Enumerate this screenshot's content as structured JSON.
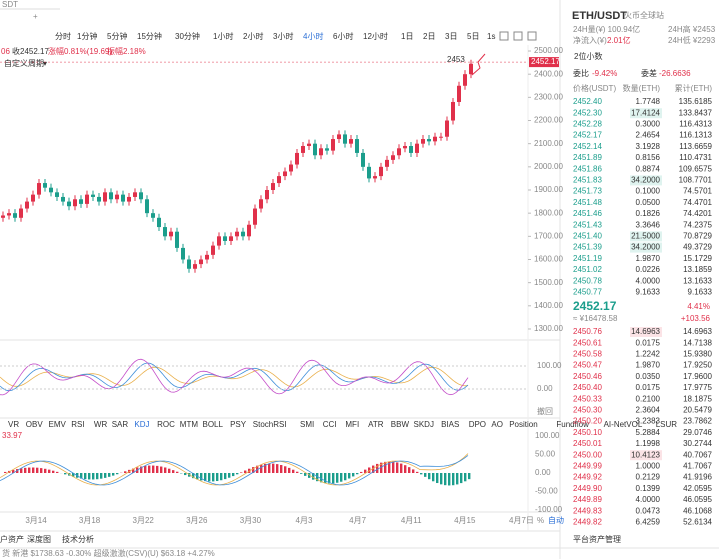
{
  "tab": "SDT",
  "periods": [
    "分时",
    "1分钟",
    "5分钟",
    "15分钟",
    "30分钟",
    "1小时",
    "2小时",
    "3小时",
    "4小时",
    "6小时",
    "12小时",
    "1日",
    "2日",
    "3日",
    "5日"
  ],
  "refresh": "1s",
  "info": {
    "prefix": "06",
    "close": "收2452.17",
    "change": "涨幅0.81%(19.69)",
    "amplitude": "振幅2.18%"
  },
  "custom_period": "自定义周期",
  "chart": {
    "type": "candlestick",
    "first_open": 1780,
    "closes": [
      1790,
      1800,
      1780,
      1820,
      1850,
      1880,
      1930,
      1910,
      1890,
      1870,
      1850,
      1830,
      1860,
      1840,
      1880,
      1870,
      1850,
      1890,
      1860,
      1880,
      1850,
      1870,
      1890,
      1860,
      1800,
      1780,
      1740,
      1700,
      1720,
      1650,
      1600,
      1560,
      1580,
      1600,
      1620,
      1660,
      1700,
      1680,
      1700,
      1720,
      1700,
      1750,
      1820,
      1860,
      1900,
      1930,
      1960,
      1980,
      2010,
      2060,
      2090,
      2100,
      2050,
      2080,
      2070,
      2120,
      2140,
      2100,
      2120,
      2060,
      2000,
      1950,
      1960,
      2000,
      2030,
      2050,
      2080,
      2090,
      2060,
      2100,
      2120,
      2110,
      2130,
      2130,
      2200,
      2280,
      2350,
      2400,
      2445
    ],
    "ylim": [
      1274,
      2526
    ],
    "yticks": [
      {
        "value": 2500,
        "label": "2500.00"
      },
      {
        "value": 2400,
        "label": "2400.00"
      },
      {
        "value": 2300,
        "label": "2300.00"
      },
      {
        "value": 2200,
        "label": "2200.00"
      },
      {
        "value": 2100,
        "label": "2100.00"
      },
      {
        "value": 2000,
        "label": "2000.00"
      },
      {
        "value": 1900,
        "label": "1900.00"
      },
      {
        "value": 1800,
        "label": "1800.00"
      },
      {
        "value": 1700,
        "label": "1700.00"
      },
      {
        "value": 1600,
        "label": "1600.00"
      },
      {
        "value": 1500,
        "label": "1500.00"
      },
      {
        "value": 1400,
        "label": "1400.00"
      },
      {
        "value": 1300,
        "label": "1300.00"
      }
    ],
    "last_price": {
      "value": 2452.17,
      "label": "2452.17"
    },
    "high": {
      "value": 2453,
      "label": "2453"
    }
  },
  "indicators": [
    "VR",
    "OBV",
    "EMV",
    "RSI",
    "WR",
    "SAR",
    "KDJ",
    "ROC",
    "MTM",
    "BOLL",
    "PSY",
    "StochRSI",
    "SMI",
    "CCI",
    "MFI",
    "ATR",
    "BBW",
    "SKDJ",
    "BIAS",
    "DPO",
    "AO",
    "Position",
    "Fundflow",
    "AI-NetVOL",
    "LSUR"
  ],
  "kdj_axis": [
    "100.00",
    "0.00",
    "撤回"
  ],
  "macd_value": "33.97",
  "macd_axis": [
    "100.00",
    "50.00",
    "0.00",
    "-50.00",
    "-100.00"
  ],
  "dates": [
    "3月14",
    "3月18",
    "3月22",
    "3月26",
    "3月30",
    "4月3",
    "4月7",
    "4月11",
    "4月15"
  ],
  "axis_controls": [
    "4月7日",
    "%",
    "自动"
  ],
  "bottom_tabs": [
    "户资产",
    "深度图",
    "技术分析"
  ],
  "ticker": "货 新港 $1738.63 -0.30%   超级激激(CSV)(U) $63.18 +4.27%",
  "side": {
    "pair": "ETH/USDT",
    "exchange": "火币全球站",
    "vol": "24H量(¥) 100.94亿",
    "high": "24H高 ¥2453",
    "inflow_label": "净流入(¥)",
    "inflow": "2.01亿",
    "low": "24H低 ¥2293",
    "decimals": "2位小数",
    "ratio_label": "委比",
    "ratio": "-9.42%",
    "diff_label": "委差",
    "diff": "-26.6636",
    "headers": [
      "价格(USDT)",
      "数量(ETH)",
      "累计(ETH)"
    ],
    "upper": [
      [
        "2452.40",
        "1.7748",
        "135.6185"
      ],
      [
        "2452.30",
        "17.4124",
        "133.8437"
      ],
      [
        "2452.28",
        "0.3000",
        "116.4313"
      ],
      [
        "2452.17",
        "2.4654",
        "116.1313"
      ],
      [
        "2452.14",
        "3.1928",
        "113.6659"
      ],
      [
        "2451.89",
        "0.8156",
        "110.4731"
      ],
      [
        "2451.86",
        "0.8874",
        "109.6575"
      ],
      [
        "2451.83",
        "34.2000",
        "108.7701"
      ],
      [
        "2451.73",
        "0.1000",
        "74.5701"
      ],
      [
        "2451.48",
        "0.0500",
        "74.4701"
      ],
      [
        "2451.46",
        "0.1826",
        "74.4201"
      ],
      [
        "2451.43",
        "3.3646",
        "74.2375"
      ],
      [
        "2451.40",
        "21.5000",
        "70.8729"
      ],
      [
        "2451.39",
        "34.2000",
        "49.3729"
      ],
      [
        "2451.19",
        "1.9870",
        "15.1729"
      ],
      [
        "2451.02",
        "0.0226",
        "13.1859"
      ],
      [
        "2450.78",
        "4.0000",
        "13.1633"
      ],
      [
        "2450.77",
        "9.1633",
        "9.1633"
      ]
    ],
    "price": "2452.17",
    "pct": "4.41%",
    "cny": "≈ ¥16478.58",
    "delta": "+103.56",
    "lower": [
      [
        "2450.76",
        "14.6963",
        "14.6963"
      ],
      [
        "2450.61",
        "0.0175",
        "14.7138"
      ],
      [
        "2450.58",
        "1.2242",
        "15.9380"
      ],
      [
        "2450.47",
        "1.9870",
        "17.9250"
      ],
      [
        "2450.46",
        "0.0350",
        "17.9600"
      ],
      [
        "2450.40",
        "0.0175",
        "17.9775"
      ],
      [
        "2450.33",
        "0.2100",
        "18.1875"
      ],
      [
        "2450.30",
        "2.3604",
        "20.5479"
      ],
      [
        "2450.20",
        "3.2383",
        "23.7862"
      ],
      [
        "2450.10",
        "5.2884",
        "29.0746"
      ],
      [
        "2450.01",
        "1.1998",
        "30.2744"
      ],
      [
        "2450.00",
        "10.4123",
        "40.7067"
      ],
      [
        "2449.99",
        "1.0000",
        "41.7067"
      ],
      [
        "2449.92",
        "0.2129",
        "41.9196"
      ],
      [
        "2449.90",
        "0.1399",
        "42.0595"
      ],
      [
        "2449.89",
        "4.0000",
        "46.0595"
      ],
      [
        "2449.83",
        "0.0473",
        "46.1068"
      ],
      [
        "2449.82",
        "6.4259",
        "52.6134"
      ]
    ],
    "asset_mgmt": "平台资产管理"
  }
}
